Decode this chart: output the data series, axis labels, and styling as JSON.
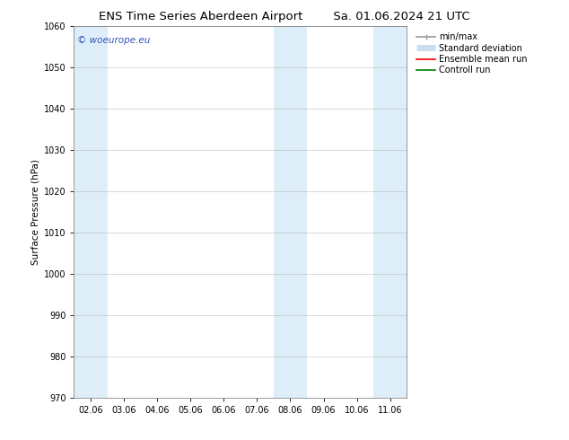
{
  "title": "ENS Time Series Aberdeen Airport",
  "title2": "Sa. 01.06.2024 21 UTC",
  "ylabel": "Surface Pressure (hPa)",
  "ylim": [
    970,
    1060
  ],
  "yticks": [
    970,
    980,
    990,
    1000,
    1010,
    1020,
    1030,
    1040,
    1050,
    1060
  ],
  "xlim_start": -0.5,
  "xlim_end": 9.5,
  "xtick_labels": [
    "02.06",
    "03.06",
    "04.06",
    "05.06",
    "06.06",
    "07.06",
    "08.06",
    "09.06",
    "10.06",
    "11.06"
  ],
  "xtick_positions": [
    0,
    1,
    2,
    3,
    4,
    5,
    6,
    7,
    8,
    9
  ],
  "shaded_bands": [
    {
      "x_start": -0.5,
      "x_end": 0.5
    },
    {
      "x_start": 5.5,
      "x_end": 6.5
    },
    {
      "x_start": 8.5,
      "x_end": 9.5
    }
  ],
  "shaded_color": "#ddeef8",
  "watermark_text": "© woeurope.eu",
  "watermark_color": "#3355bb",
  "background_color": "#ffffff",
  "grid_color": "#bbbbbb",
  "legend_items": [
    {
      "label": "min/max",
      "color": "#999999",
      "lw": 1.2
    },
    {
      "label": "Standard deviation",
      "color": "#c8dff0",
      "lw": 5
    },
    {
      "label": "Ensemble mean run",
      "color": "#ff0000",
      "lw": 1.2
    },
    {
      "label": "Controll run",
      "color": "#008000",
      "lw": 1.2
    }
  ],
  "title_fontsize": 9.5,
  "axis_fontsize": 7.5,
  "tick_fontsize": 7,
  "legend_fontsize": 7
}
